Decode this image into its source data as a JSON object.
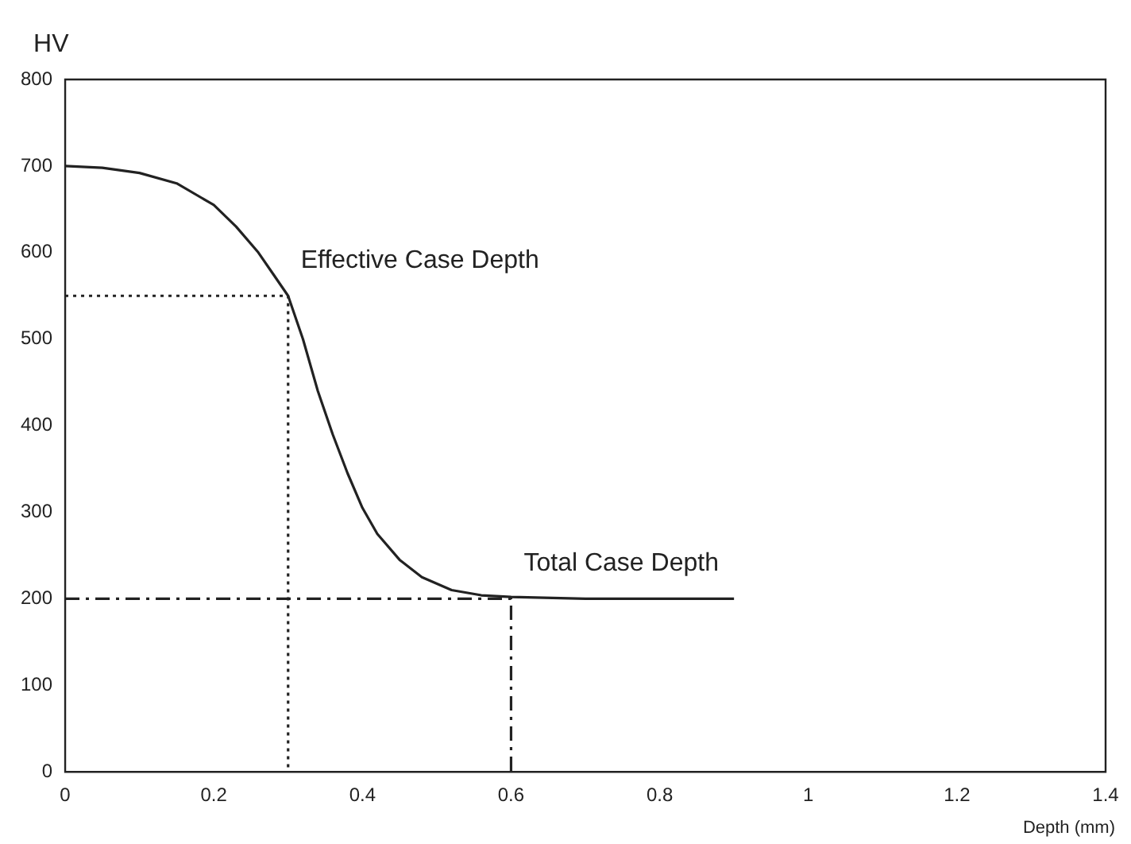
{
  "chart_data": {
    "type": "line",
    "xlabel": "Depth (mm)",
    "ylabel": "HV",
    "xlim": [
      0,
      1.4
    ],
    "xticks": [
      0,
      0.2,
      0.4,
      0.6,
      0.8,
      1,
      1.2,
      1.4
    ],
    "ylim": [
      0,
      800
    ],
    "yticks": [
      0,
      100,
      200,
      300,
      400,
      500,
      600,
      700,
      800
    ],
    "grid": false,
    "legend": false,
    "marker": "none",
    "series": [
      {
        "color": "#222222",
        "x": [
          0,
          0.05,
          0.1,
          0.15,
          0.2,
          0.23,
          0.26,
          0.28,
          0.3,
          0.32,
          0.34,
          0.36,
          0.38,
          0.4,
          0.42,
          0.45,
          0.48,
          0.52,
          0.56,
          0.6,
          0.7,
          0.8,
          0.9
        ],
        "values": [
          700,
          698,
          692,
          680,
          655,
          630,
          600,
          575,
          550,
          500,
          440,
          390,
          345,
          305,
          275,
          245,
          225,
          210,
          204,
          202,
          200,
          200,
          200
        ],
        "line_style": "solid"
      },
      {
        "color": "#222222",
        "x": [
          0,
          0.3,
          0.3
        ],
        "values": [
          550,
          550,
          0
        ],
        "line_style": "dotted"
      },
      {
        "color": "#222222",
        "x": [
          0,
          0.6,
          0.6
        ],
        "values": [
          200,
          200,
          0
        ],
        "line_style": "dashed"
      }
    ],
    "annotations": [
      {
        "text": "Effective Case Depth",
        "x": 0.3,
        "y": 550
      },
      {
        "text": "Total Case Depth",
        "x": 0.6,
        "y": 200
      }
    ]
  }
}
